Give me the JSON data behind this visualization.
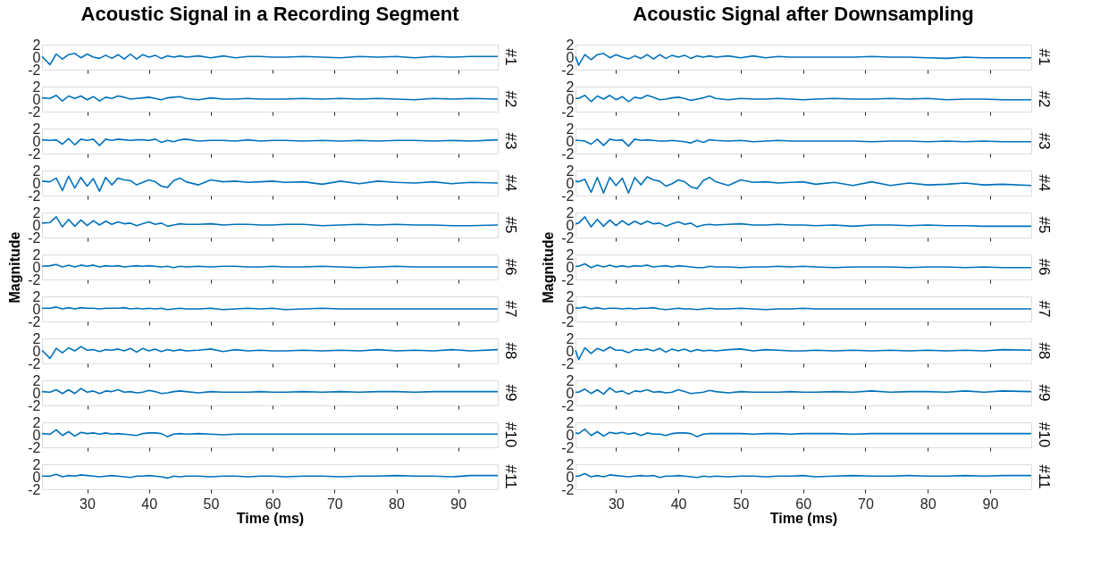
{
  "chart_data": [
    {
      "type": "line",
      "title": "Acoustic Signal in a Recording Segment",
      "y2label": "#1",
      "color": "#0072bd",
      "xlim": [
        22.7,
        96.4
      ],
      "xticks": [
        30,
        40,
        50,
        60,
        70,
        80,
        90
      ],
      "ylim": [
        -2,
        2
      ],
      "yticks": [
        -2,
        0,
        2
      ],
      "tick_labels": "y",
      "x": [
        22.7,
        24,
        25,
        26,
        27,
        28,
        29,
        30,
        31,
        32,
        33,
        34,
        35,
        36,
        37,
        38,
        39,
        40,
        41,
        42,
        43,
        44,
        45,
        46,
        48,
        50,
        52,
        54,
        56,
        58,
        60,
        62,
        65,
        68,
        71,
        74,
        77,
        80,
        83,
        86,
        89,
        92,
        96.4
      ],
      "values": [
        0.1,
        -1.2,
        0.5,
        -0.3,
        0.4,
        0.6,
        -0.1,
        0.5,
        0,
        -0.2,
        0.3,
        -0.2,
        0.4,
        -0.3,
        0.5,
        -0.3,
        0.4,
        0,
        0.3,
        -0.2,
        0.2,
        0,
        0.2,
        0,
        0.2,
        -0.1,
        0.2,
        -0.1,
        0.1,
        0.1,
        0,
        0,
        0.1,
        0,
        -0.1,
        0.1,
        0,
        0.1,
        -0.1,
        0.1,
        0,
        0.1,
        0.1
      ]
    },
    {
      "type": "line",
      "y2label": "#2",
      "color": "#0072bd",
      "xlim": [
        22.7,
        96.4
      ],
      "xticks": [
        30,
        40,
        50,
        60,
        70,
        80,
        90
      ],
      "ylim": [
        -2,
        2
      ],
      "yticks": [
        -2,
        0,
        2
      ],
      "tick_labels": "y",
      "x": [
        22.7,
        24,
        25,
        26,
        27,
        28,
        29,
        30,
        31,
        32,
        33,
        34,
        35,
        36,
        37,
        38,
        39,
        40,
        41,
        42,
        43,
        44,
        45,
        46,
        48,
        50,
        52,
        54,
        56,
        58,
        60,
        62,
        65,
        68,
        71,
        74,
        77,
        80,
        83,
        86,
        89,
        92,
        96.4
      ],
      "values": [
        0.2,
        0.1,
        0.6,
        -0.3,
        0.5,
        0.1,
        0.5,
        -0.1,
        0.4,
        -0.3,
        0.3,
        0.1,
        0.5,
        0.3,
        0,
        0.1,
        0.2,
        0.3,
        0.1,
        -0.1,
        0.2,
        0.3,
        0.4,
        0.1,
        -0.1,
        0.2,
        0,
        0,
        0.1,
        0,
        0,
        0,
        0.1,
        0,
        0.1,
        0,
        0.1,
        0,
        -0.1,
        0.1,
        0,
        0.1,
        0
      ]
    },
    {
      "type": "line",
      "y2label": "#3",
      "color": "#0072bd",
      "xlim": [
        22.7,
        96.4
      ],
      "xticks": [
        30,
        40,
        50,
        60,
        70,
        80,
        90
      ],
      "ylim": [
        -2,
        2
      ],
      "yticks": [
        -2,
        0,
        2
      ],
      "tick_labels": "y",
      "x": [
        22.7,
        24,
        25,
        26,
        27,
        28,
        29,
        30,
        31,
        32,
        33,
        34,
        35,
        36,
        37,
        38,
        39,
        40,
        41,
        42,
        43,
        44,
        45,
        46,
        48,
        50,
        52,
        54,
        56,
        58,
        60,
        62,
        65,
        68,
        71,
        74,
        77,
        80,
        83,
        86,
        89,
        92,
        96.4
      ],
      "values": [
        0.2,
        0.1,
        0.2,
        -0.5,
        0.4,
        -0.6,
        0.3,
        0.1,
        0.3,
        -0.7,
        0.3,
        0.1,
        0.3,
        0.2,
        0.1,
        0.2,
        0.2,
        0.1,
        0.3,
        -0.2,
        0.1,
        -0.1,
        0.2,
        0.3,
        0,
        0.1,
        0.1,
        0,
        0.2,
        0,
        0.1,
        0.1,
        0,
        0.1,
        0,
        0.1,
        0,
        0.1,
        0.1,
        0,
        0.1,
        0,
        0.2
      ]
    },
    {
      "type": "line",
      "y2label": "#4",
      "color": "#0072bd",
      "xlim": [
        22.7,
        96.4
      ],
      "xticks": [
        30,
        40,
        50,
        60,
        70,
        80,
        90
      ],
      "ylim": [
        -2,
        2
      ],
      "yticks": [
        -2,
        0,
        2
      ],
      "tick_labels": "y",
      "x": [
        22.7,
        24,
        25,
        26,
        27,
        28,
        29,
        30,
        31,
        32,
        33,
        34,
        35,
        36,
        37,
        38,
        39,
        40,
        41,
        42,
        43,
        44,
        45,
        46,
        48,
        50,
        52,
        54,
        56,
        58,
        60,
        62,
        65,
        68,
        71,
        74,
        77,
        80,
        83,
        86,
        89,
        92,
        96.4
      ],
      "values": [
        0.3,
        0.2,
        0.8,
        -1.2,
        1.1,
        -0.8,
        0.9,
        -0.5,
        0.7,
        -1.3,
        0.9,
        -0.3,
        0.8,
        0.5,
        0.4,
        -0.3,
        0.1,
        0.5,
        0.2,
        -0.5,
        -0.7,
        0.4,
        0.8,
        0.2,
        -0.3,
        0.5,
        0.2,
        0.3,
        0.1,
        0.2,
        0.3,
        0.1,
        0.2,
        -0.2,
        0.3,
        -0.1,
        0.3,
        0.1,
        0,
        0.2,
        -0.1,
        0.1,
        0
      ]
    },
    {
      "type": "line",
      "y2label": "#5",
      "color": "#0072bd",
      "xlim": [
        22.7,
        96.4
      ],
      "xticks": [
        30,
        40,
        50,
        60,
        70,
        80,
        90
      ],
      "ylim": [
        -2,
        2
      ],
      "yticks": [
        -2,
        0,
        2
      ],
      "tick_labels": "y",
      "x": [
        22.7,
        24,
        25,
        26,
        27,
        28,
        29,
        30,
        31,
        32,
        33,
        34,
        35,
        36,
        37,
        38,
        39,
        40,
        41,
        42,
        43,
        44,
        45,
        46,
        48,
        50,
        52,
        54,
        56,
        58,
        60,
        62,
        65,
        68,
        71,
        74,
        77,
        80,
        83,
        86,
        89,
        92,
        96.4
      ],
      "values": [
        0.3,
        0.4,
        1.3,
        -0.3,
        0.9,
        -0.2,
        0.8,
        -0.1,
        0.7,
        0,
        0.6,
        0.1,
        0.5,
        0.2,
        0.3,
        -0.1,
        0.2,
        0.5,
        0.1,
        0.3,
        -0.2,
        0,
        0.2,
        0.1,
        0.1,
        0.2,
        0,
        0.1,
        0.1,
        0,
        0,
        0.1,
        0.1,
        -0.1,
        0,
        0.1,
        0,
        0.1,
        0,
        0,
        -0.1,
        -0.1,
        0
      ]
    },
    {
      "type": "line",
      "ylabel": "Magnitude",
      "y2label": "#6",
      "color": "#0072bd",
      "xlim": [
        22.7,
        96.4
      ],
      "xticks": [
        30,
        40,
        50,
        60,
        70,
        80,
        90
      ],
      "ylim": [
        -2,
        2
      ],
      "yticks": [
        -2,
        0,
        2
      ],
      "tick_labels": "y",
      "x": [
        22.7,
        24,
        25,
        26,
        27,
        28,
        29,
        30,
        31,
        32,
        33,
        34,
        35,
        36,
        37,
        38,
        39,
        40,
        41,
        42,
        43,
        44,
        45,
        46,
        48,
        50,
        52,
        54,
        56,
        58,
        60,
        62,
        65,
        68,
        71,
        74,
        77,
        80,
        83,
        86,
        89,
        92,
        96.4
      ],
      "values": [
        0.1,
        0.2,
        0.4,
        0,
        0.3,
        0,
        0.3,
        0.1,
        0.3,
        0,
        0.2,
        0.1,
        0.2,
        0,
        0.1,
        0.2,
        0.1,
        0.2,
        0.1,
        0,
        0.1,
        -0.1,
        0.1,
        0,
        0.1,
        0,
        0.1,
        0.1,
        0,
        0,
        0.1,
        0,
        0,
        0.1,
        0,
        -0.1,
        0,
        0.1,
        0,
        0,
        0,
        0,
        0
      ]
    },
    {
      "type": "line",
      "y2label": "#7",
      "color": "#0072bd",
      "xlim": [
        22.7,
        96.4
      ],
      "xticks": [
        30,
        40,
        50,
        60,
        70,
        80,
        90
      ],
      "ylim": [
        -2,
        2
      ],
      "yticks": [
        -2,
        0,
        2
      ],
      "tick_labels": "y",
      "x": [
        22.7,
        24,
        25,
        26,
        27,
        28,
        29,
        30,
        31,
        32,
        33,
        34,
        35,
        36,
        37,
        38,
        39,
        40,
        41,
        42,
        43,
        44,
        45,
        46,
        48,
        50,
        52,
        54,
        56,
        58,
        60,
        62,
        65,
        68,
        71,
        74,
        77,
        80,
        83,
        86,
        89,
        92,
        96.4
      ],
      "values": [
        0.1,
        0.1,
        0.3,
        0,
        0.2,
        0,
        0.2,
        0.1,
        0.1,
        0,
        0.1,
        0.1,
        0.1,
        0.2,
        0,
        0.1,
        0,
        0.1,
        0,
        0.1,
        -0.1,
        0,
        0.1,
        0,
        0,
        0.1,
        -0.1,
        0,
        0.1,
        0,
        0.1,
        -0.1,
        0,
        0.1,
        0,
        0,
        0,
        0,
        0,
        0,
        0,
        0,
        0
      ]
    },
    {
      "type": "line",
      "y2label": "#8",
      "color": "#0072bd",
      "xlim": [
        22.7,
        96.4
      ],
      "xticks": [
        30,
        40,
        50,
        60,
        70,
        80,
        90
      ],
      "ylim": [
        -2,
        2
      ],
      "yticks": [
        -2,
        0,
        2
      ],
      "tick_labels": "y",
      "x": [
        22.7,
        24,
        25,
        26,
        27,
        28,
        29,
        30,
        31,
        32,
        33,
        34,
        35,
        36,
        37,
        38,
        39,
        40,
        41,
        42,
        43,
        44,
        45,
        46,
        48,
        50,
        52,
        54,
        56,
        58,
        60,
        62,
        65,
        68,
        71,
        74,
        77,
        80,
        83,
        86,
        89,
        92,
        96.4
      ],
      "values": [
        0.1,
        -1.2,
        0.4,
        -0.3,
        0.5,
        0,
        0.7,
        0.1,
        0.2,
        -0.1,
        0.2,
        0.1,
        0.3,
        0,
        0.4,
        -0.2,
        0.4,
        0,
        0.3,
        -0.1,
        0.2,
        0,
        0.2,
        0,
        0.1,
        0.3,
        -0.1,
        0.2,
        0,
        0.1,
        0,
        0,
        0.1,
        0,
        0.1,
        0,
        0.2,
        0,
        0.1,
        0,
        0.2,
        0,
        0.2
      ]
    },
    {
      "type": "line",
      "y2label": "#9",
      "color": "#0072bd",
      "xlim": [
        22.7,
        96.4
      ],
      "xticks": [
        30,
        40,
        50,
        60,
        70,
        80,
        90
      ],
      "ylim": [
        -2,
        2
      ],
      "yticks": [
        -2,
        0,
        2
      ],
      "tick_labels": "y",
      "x": [
        22.7,
        24,
        25,
        26,
        27,
        28,
        29,
        30,
        31,
        32,
        33,
        34,
        35,
        36,
        37,
        38,
        39,
        40,
        41,
        42,
        43,
        44,
        45,
        46,
        48,
        50,
        52,
        54,
        56,
        58,
        60,
        62,
        65,
        68,
        71,
        74,
        77,
        80,
        83,
        86,
        89,
        92,
        96.4
      ],
      "values": [
        0.2,
        0.1,
        0.5,
        -0.1,
        0.5,
        -0.1,
        0.7,
        0.1,
        0.3,
        -0.1,
        0.3,
        0.2,
        0.5,
        0.1,
        0.2,
        0,
        0.1,
        0.4,
        0.2,
        -0.1,
        0,
        0.2,
        0.3,
        0.2,
        0,
        0.2,
        0.1,
        0.1,
        0.1,
        0.2,
        0.1,
        0.1,
        0.2,
        0.1,
        0.2,
        0.1,
        0.2,
        0.2,
        0.1,
        0.2,
        0.2,
        0.2,
        0.2
      ]
    },
    {
      "type": "line",
      "y2label": "#10",
      "color": "#0072bd",
      "xlim": [
        22.7,
        96.4
      ],
      "xticks": [
        30,
        40,
        50,
        60,
        70,
        80,
        90
      ],
      "ylim": [
        -2,
        2
      ],
      "yticks": [
        -2,
        0,
        2
      ],
      "tick_labels": "y",
      "x": [
        22.7,
        24,
        25,
        26,
        27,
        28,
        29,
        30,
        31,
        32,
        33,
        34,
        35,
        36,
        37,
        38,
        39,
        40,
        41,
        42,
        43,
        44,
        45,
        46,
        48,
        50,
        52,
        54,
        56,
        58,
        60,
        62,
        65,
        68,
        71,
        74,
        77,
        80,
        83,
        86,
        89,
        92,
        96.4
      ],
      "values": [
        0.2,
        0.1,
        0.8,
        -0.1,
        0.5,
        -0.2,
        0.4,
        0.2,
        0.3,
        0.1,
        0.3,
        0.1,
        0.2,
        0.1,
        0,
        -0.1,
        0.2,
        0.3,
        0.3,
        0.2,
        -0.3,
        0.1,
        0.2,
        0.1,
        0.2,
        0.1,
        0,
        0.1,
        0.1,
        0.1,
        0.1,
        0.1,
        0.1,
        0.1,
        0.1,
        0.1,
        0.1,
        0.1,
        0.1,
        0.1,
        0.1,
        0.1,
        0.1
      ]
    },
    {
      "type": "line",
      "xlabel": "Time (ms)",
      "y2label": "#11",
      "color": "#0072bd",
      "xlim": [
        22.7,
        96.4
      ],
      "xticks": [
        30,
        40,
        50,
        60,
        70,
        80,
        90
      ],
      "ylim": [
        -2,
        2
      ],
      "yticks": [
        -2,
        0,
        2
      ],
      "x": [
        22.7,
        24,
        25,
        26,
        27,
        28,
        29,
        30,
        31,
        32,
        33,
        34,
        35,
        36,
        37,
        38,
        39,
        40,
        41,
        42,
        43,
        44,
        45,
        46,
        48,
        50,
        52,
        54,
        56,
        58,
        60,
        62,
        65,
        68,
        71,
        74,
        77,
        80,
        83,
        86,
        89,
        92,
        96.4
      ],
      "values": [
        0.1,
        0.1,
        0.4,
        0,
        0.2,
        0.1,
        0.3,
        0.2,
        0.1,
        0,
        0.1,
        0.2,
        0.1,
        0,
        -0.1,
        0.1,
        0.1,
        0.2,
        0.1,
        0,
        -0.2,
        0.1,
        0,
        0.1,
        0.1,
        0,
        0.1,
        0.1,
        0,
        0.1,
        0.1,
        0,
        0.1,
        0.1,
        0,
        0.1,
        0.1,
        0.2,
        0.1,
        0.1,
        0,
        0.2,
        0.2
      ]
    },
    {
      "type": "line",
      "title": "Acoustic Signal after Downsampling",
      "y2label": "#1",
      "color": "#0072bd",
      "xlim": [
        23.5,
        96.6
      ],
      "xticks": [
        30,
        40,
        50,
        60,
        70,
        80,
        90
      ],
      "ylim": [
        -2,
        2
      ],
      "yticks": [
        -2,
        0,
        2
      ],
      "tick_labels": "y",
      "x": [
        23.5,
        24,
        25,
        26,
        27,
        28,
        29,
        30,
        31,
        32,
        33,
        34,
        35,
        36,
        37,
        38,
        39,
        40,
        41,
        42,
        43,
        44,
        45,
        46,
        48,
        50,
        52,
        54,
        56,
        58,
        60,
        62,
        65,
        68,
        71,
        74,
        77,
        80,
        83,
        86,
        89,
        92,
        96.6
      ],
      "values": [
        0.1,
        -1.3,
        0.4,
        -0.4,
        0.4,
        0.6,
        -0.1,
        0.4,
        0,
        -0.3,
        0.2,
        -0.2,
        0.4,
        -0.3,
        0.4,
        -0.2,
        0.3,
        0,
        0.3,
        -0.2,
        0.2,
        0,
        0.2,
        0,
        0.2,
        -0.1,
        0.2,
        -0.1,
        0.1,
        0,
        0,
        0,
        0,
        0,
        0.1,
        0,
        0,
        -0.1,
        -0.2,
        0,
        -0.1,
        -0.1,
        -0.1
      ]
    },
    {
      "type": "line",
      "y2label": "#2",
      "color": "#0072bd",
      "xlim": [
        23.5,
        96.6
      ],
      "xticks": [
        30,
        40,
        50,
        60,
        70,
        80,
        90
      ],
      "ylim": [
        -2,
        2
      ],
      "yticks": [
        -2,
        0,
        2
      ],
      "tick_labels": "y",
      "x": [
        23.5,
        24,
        25,
        26,
        27,
        28,
        29,
        30,
        31,
        32,
        33,
        34,
        35,
        36,
        37,
        38,
        39,
        40,
        41,
        42,
        43,
        44,
        45,
        46,
        48,
        50,
        52,
        54,
        56,
        58,
        60,
        62,
        65,
        68,
        71,
        74,
        77,
        80,
        83,
        86,
        89,
        92,
        96.6
      ],
      "values": [
        0.1,
        0.1,
        0.6,
        -0.4,
        0.5,
        0,
        0.6,
        -0.1,
        0.4,
        -0.4,
        0.3,
        0.1,
        0.6,
        0.3,
        -0.1,
        0,
        0.2,
        0.3,
        0.1,
        -0.2,
        0,
        0.2,
        0.5,
        0.1,
        -0.1,
        0.1,
        0,
        0,
        0.1,
        0,
        -0.1,
        0,
        0.1,
        0,
        0,
        0.1,
        0,
        0.1,
        -0.1,
        0,
        0,
        -0.1,
        -0.1
      ]
    },
    {
      "type": "line",
      "y2label": "#3",
      "color": "#0072bd",
      "xlim": [
        23.5,
        96.6
      ],
      "xticks": [
        30,
        40,
        50,
        60,
        70,
        80,
        90
      ],
      "ylim": [
        -2,
        2
      ],
      "yticks": [
        -2,
        0,
        2
      ],
      "tick_labels": "y",
      "x": [
        23.5,
        24,
        25,
        26,
        27,
        28,
        29,
        30,
        31,
        32,
        33,
        34,
        35,
        36,
        37,
        38,
        39,
        40,
        41,
        42,
        43,
        44,
        45,
        46,
        48,
        50,
        52,
        54,
        56,
        58,
        60,
        62,
        65,
        68,
        71,
        74,
        77,
        80,
        83,
        86,
        89,
        92,
        96.6
      ],
      "values": [
        0.1,
        0.1,
        0,
        -0.5,
        0.3,
        -0.7,
        0.3,
        0.1,
        0.2,
        -0.8,
        0.3,
        0.1,
        0.2,
        0.1,
        0,
        0,
        0.1,
        0,
        -0.1,
        -0.3,
        0.1,
        -0.2,
        0.2,
        0.1,
        0,
        0.1,
        -0.1,
        0,
        0.1,
        0,
        0,
        0,
        0,
        0,
        -0.1,
        0,
        0,
        -0.1,
        0,
        -0.1,
        0,
        -0.1,
        -0.1
      ]
    },
    {
      "type": "line",
      "y2label": "#4",
      "color": "#0072bd",
      "xlim": [
        23.5,
        96.6
      ],
      "xticks": [
        30,
        40,
        50,
        60,
        70,
        80,
        90
      ],
      "ylim": [
        -2,
        2
      ],
      "yticks": [
        -2,
        0,
        2
      ],
      "tick_labels": "y",
      "x": [
        23.5,
        24,
        25,
        26,
        27,
        28,
        29,
        30,
        31,
        32,
        33,
        34,
        35,
        36,
        37,
        38,
        39,
        40,
        41,
        42,
        43,
        44,
        45,
        46,
        48,
        50,
        52,
        54,
        56,
        58,
        60,
        62,
        65,
        68,
        71,
        74,
        77,
        80,
        83,
        86,
        89,
        92,
        96.6
      ],
      "values": [
        0.3,
        0.2,
        0.6,
        -1.5,
        0.9,
        -1.6,
        0.9,
        -0.4,
        0.8,
        -1.6,
        0.9,
        -0.3,
        1.0,
        0.5,
        0.3,
        -0.5,
        -0.1,
        0.5,
        0.2,
        -0.6,
        -0.9,
        0.4,
        0.9,
        0.2,
        -0.4,
        0.5,
        0.1,
        0.2,
        0,
        0.1,
        0.2,
        -0.2,
        0.1,
        -0.4,
        0.2,
        -0.4,
        0,
        -0.3,
        -0.2,
        0,
        -0.3,
        -0.2,
        -0.4
      ]
    },
    {
      "type": "line",
      "y2label": "#5",
      "color": "#0072bd",
      "xlim": [
        23.5,
        96.6
      ],
      "xticks": [
        30,
        40,
        50,
        60,
        70,
        80,
        90
      ],
      "ylim": [
        -2,
        2
      ],
      "yticks": [
        -2,
        0,
        2
      ],
      "tick_labels": "y",
      "x": [
        23.5,
        24,
        25,
        26,
        27,
        28,
        29,
        30,
        31,
        32,
        33,
        34,
        35,
        36,
        37,
        38,
        39,
        40,
        41,
        42,
        43,
        44,
        45,
        46,
        48,
        50,
        52,
        54,
        56,
        58,
        60,
        62,
        65,
        68,
        71,
        74,
        77,
        80,
        83,
        86,
        89,
        92,
        96.6
      ],
      "values": [
        0.2,
        0.3,
        1.3,
        -0.3,
        0.9,
        -0.2,
        0.8,
        -0.1,
        0.7,
        0,
        0.6,
        0.1,
        0.6,
        0.2,
        0.3,
        -0.2,
        0.2,
        0.5,
        0.1,
        0.3,
        -0.3,
        0,
        0.1,
        0,
        0.1,
        0.2,
        0,
        0,
        0.1,
        0,
        0,
        -0.1,
        0,
        -0.2,
        0,
        0,
        -0.1,
        0,
        -0.1,
        -0.1,
        -0.2,
        -0.2,
        -0.2
      ]
    },
    {
      "type": "line",
      "ylabel": "Magnitude",
      "y2label": "#6",
      "color": "#0072bd",
      "xlim": [
        23.5,
        96.6
      ],
      "xticks": [
        30,
        40,
        50,
        60,
        70,
        80,
        90
      ],
      "ylim": [
        -2,
        2
      ],
      "yticks": [
        -2,
        0,
        2
      ],
      "tick_labels": "y",
      "x": [
        23.5,
        24,
        25,
        26,
        27,
        28,
        29,
        30,
        31,
        32,
        33,
        34,
        35,
        36,
        37,
        38,
        39,
        40,
        41,
        42,
        43,
        44,
        45,
        46,
        48,
        50,
        52,
        54,
        56,
        58,
        60,
        62,
        65,
        68,
        71,
        74,
        77,
        80,
        83,
        86,
        89,
        92,
        96.6
      ],
      "values": [
        0.1,
        0.1,
        0.5,
        -0.1,
        0.3,
        0,
        0.3,
        0,
        0.2,
        0,
        0.2,
        0.1,
        0.3,
        0,
        0.1,
        0.2,
        0,
        0.2,
        0.1,
        0,
        -0.1,
        -0.1,
        0.1,
        0,
        0,
        -0.1,
        0,
        0,
        0.1,
        0,
        0.1,
        0,
        -0.1,
        0,
        0,
        0,
        -0.1,
        0,
        0,
        -0.1,
        0,
        -0.1,
        -0.1
      ]
    },
    {
      "type": "line",
      "y2label": "#7",
      "color": "#0072bd",
      "xlim": [
        23.5,
        96.6
      ],
      "xticks": [
        30,
        40,
        50,
        60,
        70,
        80,
        90
      ],
      "ylim": [
        -2,
        2
      ],
      "yticks": [
        -2,
        0,
        2
      ],
      "tick_labels": "y",
      "x": [
        23.5,
        24,
        25,
        26,
        27,
        28,
        29,
        30,
        31,
        32,
        33,
        34,
        35,
        36,
        37,
        38,
        39,
        40,
        41,
        42,
        43,
        44,
        45,
        46,
        48,
        50,
        52,
        54,
        56,
        58,
        60,
        62,
        65,
        68,
        71,
        74,
        77,
        80,
        83,
        86,
        89,
        92,
        96.6
      ],
      "values": [
        0.2,
        0.1,
        0.3,
        0,
        0.2,
        0,
        0.1,
        0.1,
        0,
        0.1,
        0,
        0.1,
        0.1,
        0.2,
        0,
        -0.1,
        0,
        0.1,
        0,
        0,
        -0.1,
        0,
        0.1,
        0,
        0,
        0.1,
        0,
        -0.1,
        0,
        0,
        0.1,
        0,
        0,
        0,
        0,
        0,
        0,
        0,
        0,
        0,
        0,
        0,
        0
      ]
    },
    {
      "type": "line",
      "y2label": "#8",
      "color": "#0072bd",
      "xlim": [
        23.5,
        96.6
      ],
      "xticks": [
        30,
        40,
        50,
        60,
        70,
        80,
        90
      ],
      "ylim": [
        -2,
        2
      ],
      "yticks": [
        -2,
        0,
        2
      ],
      "tick_labels": "y",
      "x": [
        23.5,
        24,
        25,
        26,
        27,
        28,
        29,
        30,
        31,
        32,
        33,
        34,
        35,
        36,
        37,
        38,
        39,
        40,
        41,
        42,
        43,
        44,
        45,
        46,
        48,
        50,
        52,
        54,
        56,
        58,
        60,
        62,
        65,
        68,
        71,
        74,
        77,
        80,
        83,
        86,
        89,
        92,
        96.6
      ],
      "values": [
        0.1,
        -1.4,
        0.5,
        -0.4,
        0.4,
        0,
        0.6,
        0.1,
        0.1,
        -0.3,
        0.2,
        0.1,
        0.3,
        0,
        0.4,
        -0.2,
        0.3,
        0,
        0.3,
        -0.1,
        0.2,
        0,
        0.1,
        0,
        0.2,
        0.3,
        0,
        0.2,
        0.1,
        0,
        0,
        0.1,
        0,
        0.1,
        0,
        0.1,
        0,
        0.1,
        0,
        0.1,
        0,
        0.2,
        0.1
      ]
    },
    {
      "type": "line",
      "y2label": "#9",
      "color": "#0072bd",
      "xlim": [
        23.5,
        96.6
      ],
      "xticks": [
        30,
        40,
        50,
        60,
        70,
        80,
        90
      ],
      "ylim": [
        -2,
        2
      ],
      "yticks": [
        -2,
        0,
        2
      ],
      "tick_labels": "y",
      "x": [
        23.5,
        24,
        25,
        26,
        27,
        28,
        29,
        30,
        31,
        32,
        33,
        34,
        35,
        36,
        37,
        38,
        39,
        40,
        41,
        42,
        43,
        44,
        45,
        46,
        48,
        50,
        52,
        54,
        56,
        58,
        60,
        62,
        65,
        68,
        71,
        74,
        77,
        80,
        83,
        86,
        89,
        92,
        96.6
      ],
      "values": [
        0.1,
        0.1,
        0.6,
        -0.1,
        0.5,
        -0.2,
        0.8,
        0.1,
        0.3,
        -0.2,
        0.3,
        0.2,
        0.5,
        0.1,
        0.2,
        0,
        0.1,
        0.5,
        0.2,
        -0.1,
        0,
        0.1,
        0.4,
        0.2,
        0,
        0.2,
        0.1,
        0.1,
        0.1,
        0.2,
        0.1,
        0.1,
        0.2,
        0.1,
        0.3,
        0.1,
        0.2,
        0.2,
        0.1,
        0.3,
        0.1,
        0.3,
        0.2
      ]
    },
    {
      "type": "line",
      "y2label": "#10",
      "color": "#0072bd",
      "xlim": [
        23.5,
        96.6
      ],
      "xticks": [
        30,
        40,
        50,
        60,
        70,
        80,
        90
      ],
      "ylim": [
        -2,
        2
      ],
      "yticks": [
        -2,
        0,
        2
      ],
      "tick_labels": "y",
      "x": [
        23.5,
        24,
        25,
        26,
        27,
        28,
        29,
        30,
        31,
        32,
        33,
        34,
        35,
        36,
        37,
        38,
        39,
        40,
        41,
        42,
        43,
        44,
        45,
        46,
        48,
        50,
        52,
        54,
        56,
        58,
        60,
        62,
        65,
        68,
        71,
        74,
        77,
        80,
        83,
        86,
        89,
        92,
        96.6
      ],
      "values": [
        0.3,
        0.2,
        0.9,
        -0.1,
        0.5,
        -0.2,
        0.4,
        0.2,
        0.4,
        0.1,
        0.3,
        -0.1,
        0.3,
        0.1,
        0.1,
        -0.1,
        0.2,
        0.3,
        0.3,
        0.2,
        -0.3,
        0.1,
        0.2,
        0.2,
        0.2,
        0.2,
        0.1,
        0.2,
        0.2,
        0.1,
        0.2,
        0.2,
        0.2,
        0.1,
        0.2,
        0.2,
        0.2,
        0.2,
        0.2,
        0.2,
        0.2,
        0.2,
        0.2
      ]
    },
    {
      "type": "line",
      "xlabel": "Time (ms)",
      "y2label": "#11",
      "color": "#0072bd",
      "xlim": [
        23.5,
        96.6
      ],
      "xticks": [
        30,
        40,
        50,
        60,
        70,
        80,
        90
      ],
      "ylim": [
        -2,
        2
      ],
      "yticks": [
        -2,
        0,
        2
      ],
      "x": [
        23.5,
        24,
        25,
        26,
        27,
        28,
        29,
        30,
        31,
        32,
        33,
        34,
        35,
        36,
        37,
        38,
        39,
        40,
        41,
        42,
        43,
        44,
        45,
        46,
        48,
        50,
        52,
        54,
        56,
        58,
        60,
        62,
        65,
        68,
        71,
        74,
        77,
        80,
        83,
        86,
        89,
        92,
        96.6
      ],
      "values": [
        0.1,
        0.1,
        0.5,
        0,
        0.2,
        0,
        0.3,
        0.2,
        0.1,
        0,
        0.1,
        0.2,
        0.1,
        0.2,
        -0.1,
        0.1,
        0.1,
        0.2,
        0.1,
        0,
        -0.1,
        0.1,
        0,
        0.1,
        0,
        0.1,
        0.1,
        0,
        0.1,
        0.1,
        0.2,
        0,
        0.1,
        0.2,
        0.1,
        0.1,
        0.2,
        0.1,
        0.1,
        0.2,
        0.1,
        0.2,
        0.2
      ]
    }
  ]
}
